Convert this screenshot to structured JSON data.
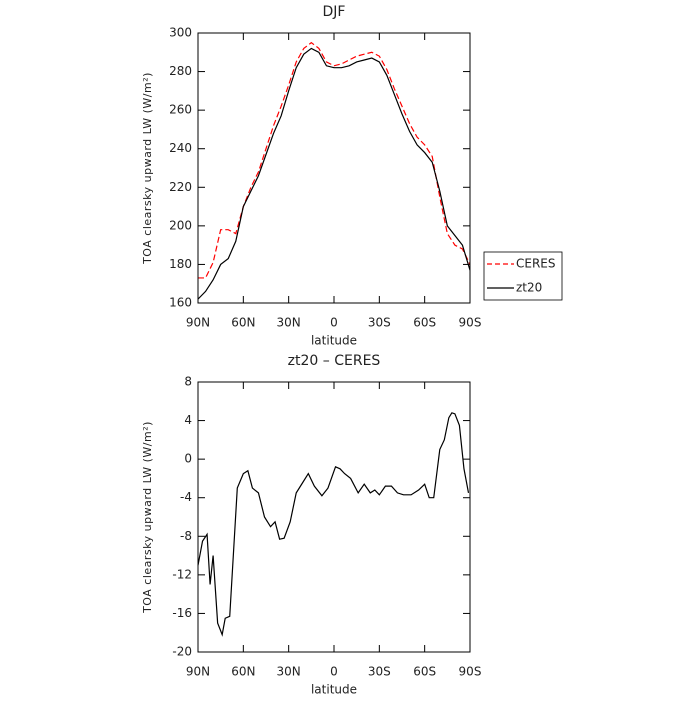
{
  "chart_data": [
    {
      "type": "line",
      "title": "DJF",
      "x_label": "latitude",
      "y_label": "TOA clearsky upward LW (W/m²)",
      "xlim": [
        90,
        -90
      ],
      "ylim": [
        160,
        300
      ],
      "xticks": [
        {
          "value": 90,
          "label": "90N"
        },
        {
          "value": 60,
          "label": "60N"
        },
        {
          "value": 30,
          "label": "30N"
        },
        0,
        {
          "value": -30,
          "label": "30S"
        },
        {
          "value": -60,
          "label": "60S"
        },
        {
          "value": -90,
          "label": "90S"
        }
      ],
      "yticks": [
        160,
        180,
        200,
        220,
        240,
        260,
        280,
        300
      ],
      "legend": "right",
      "x": [
        90,
        85,
        80,
        75,
        70,
        65,
        60,
        55,
        50,
        45,
        40,
        35,
        30,
        25,
        20,
        15,
        10,
        5,
        0,
        -5,
        -10,
        -15,
        -20,
        -25,
        -30,
        -35,
        -40,
        -45,
        -50,
        -55,
        -60,
        -65,
        -70,
        -75,
        -80,
        -85,
        -90
      ],
      "series": [
        {
          "name": "CERES",
          "color": "#ff0000",
          "line_style": "dashed",
          "values": [
            173,
            173,
            181,
            198,
            198,
            196,
            210,
            220,
            228,
            240,
            252,
            262,
            273,
            285,
            292,
            295,
            292,
            285,
            283,
            284,
            286,
            288,
            289,
            290,
            288,
            281,
            271,
            262,
            253,
            246,
            242,
            236,
            215,
            196,
            190,
            188,
            180
          ]
        },
        {
          "name": "zt20",
          "color": "#000000",
          "line_style": "solid",
          "values": [
            162,
            166,
            172,
            180,
            183,
            192,
            210,
            218,
            226,
            237,
            248,
            257,
            270,
            282,
            289,
            292,
            290,
            283,
            282,
            282,
            283,
            285,
            286,
            287,
            285,
            278,
            268,
            258,
            249,
            242,
            238,
            233,
            218,
            200,
            195,
            190,
            177
          ]
        }
      ]
    },
    {
      "type": "line",
      "title": "zt20 – CERES",
      "x_label": "latitude",
      "y_label": "TOA clearsky upward LW (W/m²)",
      "xlim": [
        90,
        -90
      ],
      "ylim": [
        -20,
        8
      ],
      "xticks": [
        {
          "value": 90,
          "label": "90N"
        },
        {
          "value": 60,
          "label": "60N"
        },
        {
          "value": 30,
          "label": "30N"
        },
        0,
        {
          "value": -30,
          "label": "30S"
        },
        {
          "value": -60,
          "label": "60S"
        },
        {
          "value": -90,
          "label": "90S"
        }
      ],
      "yticks": [
        -20,
        -16,
        -12,
        -8,
        -4,
        0,
        4,
        8
      ],
      "x": [
        90,
        87,
        84,
        82,
        80,
        77,
        74,
        72,
        69,
        64,
        60,
        57,
        54,
        50,
        46,
        42,
        39,
        36,
        33,
        29,
        25,
        21,
        17,
        13,
        8,
        4,
        -1,
        -4,
        -7,
        -11,
        -16,
        -20,
        -24,
        -27,
        -30,
        -34,
        -38,
        -42,
        -46,
        -51,
        -56,
        -60,
        -63,
        -66,
        -70,
        -73,
        -76,
        -78,
        -80,
        -83,
        -86,
        -89
      ],
      "series": [
        {
          "color": "#000000",
          "line_style": "solid",
          "values": [
            -11,
            -8.5,
            -7.8,
            -13,
            -10,
            -17,
            -18.2,
            -16.5,
            -16.3,
            -3,
            -1.5,
            -1.2,
            -3,
            -3.5,
            -6,
            -7,
            -6.5,
            -8.3,
            -8.2,
            -6.5,
            -3.5,
            -2.5,
            -1.5,
            -2.8,
            -3.8,
            -3,
            -0.8,
            -1,
            -1.5,
            -2,
            -3.5,
            -2.6,
            -3.5,
            -3.2,
            -3.7,
            -2.8,
            -2.8,
            -3.5,
            -3.7,
            -3.7,
            -3.2,
            -2.6,
            -4,
            -4,
            1,
            2,
            4.3,
            4.8,
            4.7,
            3.5,
            -1,
            -3.5
          ]
        }
      ]
    }
  ]
}
